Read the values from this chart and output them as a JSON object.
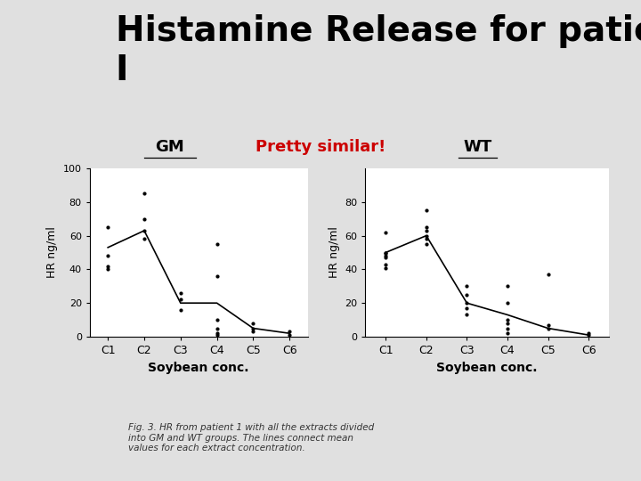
{
  "title": "Histamine Release for patient\nI",
  "title_fontsize": 28,
  "title_color": "#000000",
  "background_color": "#e0e0e0",
  "label_gm": "GM",
  "label_wt": "WT",
  "label_annotation": "Pretty similar!",
  "label_annotation_color": "#cc0000",
  "xlabel": "Soybean conc.",
  "ylabel": "HR ng/ml",
  "categories": [
    "C1",
    "C2",
    "C3",
    "C4",
    "C5",
    "C6"
  ],
  "gm_mean": [
    53,
    63,
    20,
    20,
    5,
    2
  ],
  "gm_scatter": [
    [
      65,
      48,
      42,
      40
    ],
    [
      85,
      70,
      63,
      58
    ],
    [
      26,
      22,
      16
    ],
    [
      55,
      36,
      10,
      5,
      2,
      1
    ],
    [
      8,
      5,
      3
    ],
    [
      3,
      1
    ]
  ],
  "wt_mean": [
    50,
    60,
    20,
    13,
    5,
    1
  ],
  "wt_scatter": [
    [
      62,
      50,
      50,
      48,
      47,
      43,
      41
    ],
    [
      75,
      65,
      63,
      60,
      58,
      55
    ],
    [
      30,
      25,
      20,
      17,
      13
    ],
    [
      30,
      20,
      10,
      8,
      5,
      2
    ],
    [
      37,
      7,
      5
    ],
    [
      2,
      1
    ]
  ],
  "ylim_gm": [
    0,
    100
  ],
  "ylim_wt": [
    0,
    100
  ],
  "yticks_gm": [
    0,
    20,
    40,
    60,
    80,
    100
  ],
  "yticks_wt": [
    0,
    20,
    40,
    60,
    80
  ],
  "caption": "Fig. 3. HR from patient 1 with all the extracts divided\ninto GM and WT groups. The lines connect mean\nvalues for each extract concentration.",
  "caption_fontsize": 7.5,
  "caption_color": "#333333"
}
